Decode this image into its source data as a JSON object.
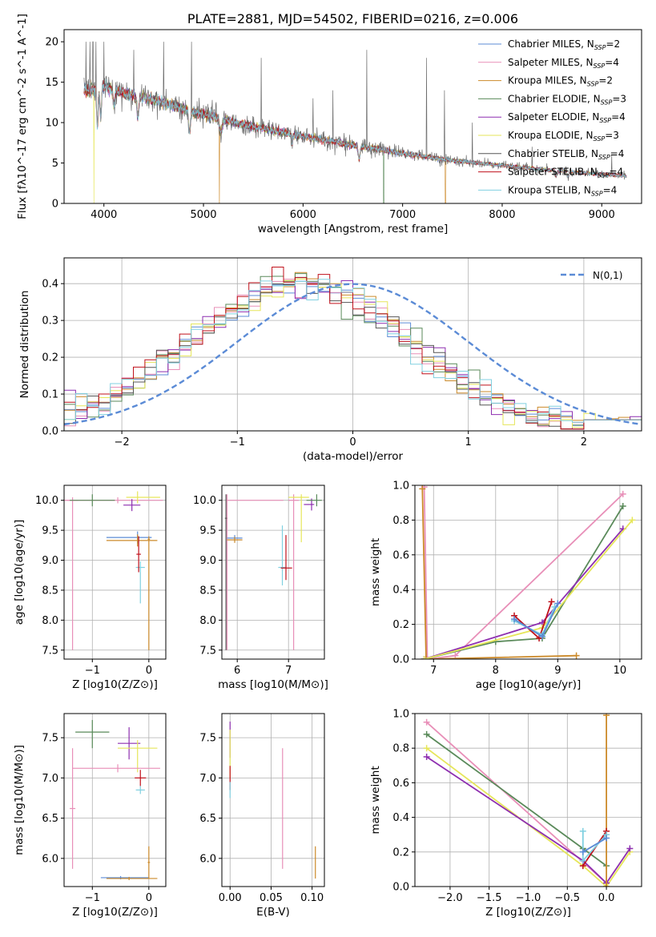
{
  "chart_data": [
    {
      "type": "line",
      "title": "PLATE=2881, MJD=54502, FIBERID=0216, z=0.006",
      "xlabel": "wavelength [Angstrom, rest frame]",
      "ylabel": "Flux [fλ10^-17 erg cm^-2 s^-1 A^-1]",
      "xlim": [
        3600,
        9400
      ],
      "ylim": [
        0,
        21.5
      ],
      "xticks": [
        4000,
        5000,
        6000,
        7000,
        8000,
        9000
      ],
      "yticks": [
        0,
        5,
        10,
        15,
        20
      ],
      "legend_position": "upper-right",
      "series": [
        {
          "name": "Chabrier MILES, N_SSP=2",
          "color": "#5b8bd6"
        },
        {
          "name": "Salpeter MILES, N_SSP=4",
          "color": "#e88fb8"
        },
        {
          "name": "Kroupa MILES, N_SSP=2",
          "color": "#cc8a2a"
        },
        {
          "name": "Chabrier ELODIE, N_SSP=3",
          "color": "#5a8a5a"
        },
        {
          "name": "Salpeter ELODIE, N_SSP=4",
          "color": "#8e2fb0"
        },
        {
          "name": "Kroupa ELODIE, N_SSP=3",
          "color": "#e6e65a"
        },
        {
          "name": "Chabrier STELIB, N_SSP=4",
          "color": "#555555"
        },
        {
          "name": "Salpeter STELIB, N_SSP=4",
          "color": "#c0111b"
        },
        {
          "name": "Kroupa STELIB, N_SSP=4",
          "color": "#80d0e0"
        }
      ],
      "continuum": {
        "x": [
          3800,
          4000,
          4200,
          4500,
          5000,
          5500,
          6000,
          6500,
          7000,
          7500,
          8000,
          8500,
          9000,
          9250
        ],
        "y": [
          13.8,
          14.5,
          13.6,
          12.8,
          11.0,
          9.5,
          8.3,
          7.2,
          6.2,
          5.3,
          4.7,
          4.1,
          3.6,
          3.4
        ]
      }
    },
    {
      "type": "histogram",
      "xlabel": "(data-model)/error",
      "ylabel": "Normed distribution",
      "xlim": [
        -2.5,
        2.5
      ],
      "ylim": [
        0,
        0.47
      ],
      "xticks": [
        -2,
        -1,
        0,
        1,
        2
      ],
      "yticks": [
        0.0,
        0.1,
        0.2,
        0.3,
        0.4
      ],
      "reference_curve": {
        "label": "N(0,1)",
        "mean": 0,
        "sigma": 1,
        "color": "#5b8bd6"
      },
      "bin_width": 0.1,
      "distribution_center": -0.45,
      "distribution_sigma": 0.95,
      "distribution_peak": 0.4,
      "legend_position": "upper-right"
    },
    {
      "type": "scatter",
      "xlabel": "Z [log10(Z/Z⊙)]",
      "ylabel": "age [log10(age/yr)]",
      "xlim": [
        -1.5,
        0.3
      ],
      "ylim": [
        7.35,
        10.25
      ],
      "xticks": [
        -1,
        0
      ],
      "yticks": [
        7.5,
        8.0,
        8.5,
        9.0,
        9.5,
        10.0
      ],
      "points": [
        {
          "x": -1.35,
          "y": 10.0,
          "xerr": [
            0.1,
            0.1
          ],
          "yerr": [
            2.5,
            0.05
          ],
          "color": "#e88fb8"
        },
        {
          "x": -0.55,
          "y": 10.0,
          "xerr": [
            0.95,
            0.8
          ],
          "yerr": [
            0.05,
            0.05
          ],
          "color": "#e88fb8"
        },
        {
          "x": -1.0,
          "y": 10.0,
          "xerr": [
            0.4,
            0.4
          ],
          "yerr": [
            0.1,
            0.1
          ],
          "color": "#5a8a5a"
        },
        {
          "x": -0.2,
          "y": 10.05,
          "xerr": [
            0.2,
            0.4
          ],
          "yerr": [
            0.1,
            0.1
          ],
          "color": "#e6e65a"
        },
        {
          "x": -0.3,
          "y": 9.92,
          "xerr": [
            0.15,
            0.15
          ],
          "yerr": [
            0.1,
            0.1
          ],
          "color": "#8e2fb0"
        },
        {
          "x": -0.2,
          "y": 9.38,
          "xerr": [
            0.55,
            0.25
          ],
          "yerr": [
            0.1,
            0.1
          ],
          "color": "#5b8bd6"
        },
        {
          "x": -0.2,
          "y": 9.33,
          "xerr": [
            0.55,
            0.35
          ],
          "yerr": [
            0.1,
            0.1
          ],
          "color": "#cc8a2a"
        },
        {
          "x": -0.15,
          "y": 8.88,
          "xerr": [
            0.08,
            0.08
          ],
          "yerr": [
            0.6,
            0.1
          ],
          "color": "#80d0e0"
        },
        {
          "x": -0.18,
          "y": 9.1,
          "xerr": [
            0.04,
            0.04
          ],
          "yerr": [
            0.3,
            0.3
          ],
          "color": "#c0111b"
        },
        {
          "x": 0.0,
          "y": 9.35,
          "xerr": [
            0.02,
            0.02
          ],
          "yerr": [
            1.85,
            0.05
          ],
          "color": "#cc8a2a"
        }
      ]
    },
    {
      "type": "scatter",
      "xlabel": "mass [log10(M/M⊙)]",
      "ylabel": "",
      "xlim": [
        5.7,
        7.7
      ],
      "ylim": [
        7.35,
        10.25
      ],
      "xticks": [
        6,
        7
      ],
      "yticks": [
        7.5,
        8.0,
        8.5,
        9.0,
        9.5,
        10.0
      ],
      "points": [
        {
          "x": 5.8,
          "y": 10.0,
          "xerr": [
            0.02,
            1.1
          ],
          "yerr": [
            2.5,
            0.1
          ],
          "color": "#e88fb8"
        },
        {
          "x": 5.78,
          "y": 9.7,
          "xerr": [
            0.02,
            0.02
          ],
          "yerr": [
            2.2,
            0.4
          ],
          "color": "#555555"
        },
        {
          "x": 5.95,
          "y": 9.37,
          "xerr": [
            0.15,
            0.15
          ],
          "yerr": [
            0.05,
            0.05
          ],
          "color": "#5b8bd6"
        },
        {
          "x": 5.95,
          "y": 9.34,
          "xerr": [
            0.15,
            0.15
          ],
          "yerr": [
            0.05,
            0.05
          ],
          "color": "#cc8a2a"
        },
        {
          "x": 7.1,
          "y": 10.0,
          "xerr": [
            0.1,
            0.1
          ],
          "yerr": [
            2.5,
            0.1
          ],
          "color": "#e88fb8"
        },
        {
          "x": 7.25,
          "y": 10.05,
          "xerr": [
            0.25,
            0.15
          ],
          "yerr": [
            0.75,
            0.05
          ],
          "color": "#e6e65a"
        },
        {
          "x": 7.45,
          "y": 9.93,
          "xerr": [
            0.15,
            0.05
          ],
          "yerr": [
            0.1,
            0.1
          ],
          "color": "#8e2fb0"
        },
        {
          "x": 7.55,
          "y": 10.0,
          "xerr": [
            0.2,
            0.1
          ],
          "yerr": [
            0.1,
            0.1
          ],
          "color": "#5a8a5a"
        },
        {
          "x": 6.88,
          "y": 8.88,
          "xerr": [
            0.08,
            0.08
          ],
          "yerr": [
            0.3,
            0.7
          ],
          "color": "#80d0e0"
        },
        {
          "x": 6.95,
          "y": 8.87,
          "xerr": [
            0.1,
            0.12
          ],
          "yerr": [
            0.2,
            0.55
          ],
          "color": "#c0111b"
        }
      ]
    },
    {
      "type": "line",
      "xlabel": "age [log10(age/yr)]",
      "ylabel": "mass weight",
      "xlim": [
        6.7,
        10.35
      ],
      "ylim": [
        0,
        1.0
      ],
      "xticks": [
        7,
        8,
        9,
        10
      ],
      "yticks": [
        0.0,
        0.2,
        0.4,
        0.6,
        0.8,
        1.0
      ],
      "series": [
        {
          "color": "#e88fb8",
          "x": [
            6.85,
            6.9,
            7.35,
            10.05
          ],
          "y": [
            0.99,
            0.0,
            0.02,
            0.95
          ]
        },
        {
          "color": "#cc8a2a",
          "x": [
            6.82,
            6.88,
            9.3
          ],
          "y": [
            0.98,
            0.0,
            0.02
          ]
        },
        {
          "color": "#5a8a5a",
          "x": [
            6.85,
            8.0,
            8.75,
            10.05
          ],
          "y": [
            0.0,
            0.1,
            0.12,
            0.88
          ]
        },
        {
          "color": "#8e2fb0",
          "x": [
            6.85,
            8.75,
            10.05
          ],
          "y": [
            0.0,
            0.21,
            0.75
          ]
        },
        {
          "color": "#e6e65a",
          "x": [
            6.85,
            8.75,
            10.2
          ],
          "y": [
            0.0,
            0.18,
            0.8
          ]
        },
        {
          "color": "#c0111b",
          "x": [
            8.3,
            8.7,
            8.9
          ],
          "y": [
            0.25,
            0.12,
            0.33
          ]
        },
        {
          "color": "#80d0e0",
          "x": [
            8.3,
            8.75,
            8.95
          ],
          "y": [
            0.22,
            0.14,
            0.3
          ]
        },
        {
          "color": "#5b8bd6",
          "x": [
            8.3,
            8.75,
            9.0
          ],
          "y": [
            0.23,
            0.13,
            0.32
          ]
        }
      ]
    },
    {
      "type": "scatter",
      "xlabel": "Z [log10(Z/Z⊙)]",
      "ylabel": "mass [log10(M/M⊙)]",
      "xlim": [
        -1.5,
        0.3
      ],
      "ylim": [
        5.65,
        7.8
      ],
      "xticks": [
        -1,
        0
      ],
      "yticks": [
        6.0,
        6.5,
        7.0,
        7.5
      ],
      "points": [
        {
          "x": -1.0,
          "y": 7.57,
          "xerr": [
            0.3,
            0.3
          ],
          "yerr": [
            0.2,
            0.15
          ],
          "color": "#5a8a5a"
        },
        {
          "x": -0.35,
          "y": 7.43,
          "xerr": [
            0.2,
            0.2
          ],
          "yerr": [
            0.2,
            0.2
          ],
          "color": "#8e2fb0"
        },
        {
          "x": -0.2,
          "y": 7.37,
          "xerr": [
            0.35,
            0.35
          ],
          "yerr": [
            0.3,
            0.1
          ],
          "color": "#e6e65a"
        },
        {
          "x": -0.55,
          "y": 7.12,
          "xerr": [
            0.8,
            0.75
          ],
          "yerr": [
            0.05,
            0.05
          ],
          "color": "#e88fb8"
        },
        {
          "x": -1.35,
          "y": 6.62,
          "xerr": [
            0.05,
            0.05
          ],
          "yerr": [
            0.75,
            0.75
          ],
          "color": "#e88fb8"
        },
        {
          "x": -0.15,
          "y": 7.0,
          "xerr": [
            0.1,
            0.1
          ],
          "yerr": [
            0.1,
            0.1
          ],
          "color": "#c0111b"
        },
        {
          "x": -0.15,
          "y": 6.85,
          "xerr": [
            0.08,
            0.08
          ],
          "yerr": [
            0.05,
            0.05
          ],
          "color": "#80d0e0"
        },
        {
          "x": -0.5,
          "y": 5.76,
          "xerr": [
            0.35,
            0.5
          ],
          "yerr": [
            0.02,
            0.02
          ],
          "color": "#5b8bd6"
        },
        {
          "x": -0.35,
          "y": 5.75,
          "xerr": [
            0.4,
            0.5
          ],
          "yerr": [
            0.02,
            0.02
          ],
          "color": "#cc8a2a"
        },
        {
          "x": 0.0,
          "y": 5.95,
          "xerr": [
            0.02,
            0.02
          ],
          "yerr": [
            0.2,
            0.2
          ],
          "color": "#cc8a2a"
        }
      ]
    },
    {
      "type": "scatter",
      "xlabel": "E(B-V)",
      "ylabel": "",
      "xlim": [
        -0.01,
        0.115
      ],
      "ylim": [
        5.65,
        7.8
      ],
      "xticks": [
        0.0,
        0.05,
        0.1
      ],
      "yticks": [
        6.0,
        6.5,
        7.0,
        7.5
      ],
      "points": [
        {
          "x": 0.0,
          "y": 7.5,
          "xerr": [
            0,
            0
          ],
          "yerr": [
            0.25,
            0.2
          ],
          "color": "#8e2fb0"
        },
        {
          "x": 0.0,
          "y": 7.3,
          "xerr": [
            0,
            0
          ],
          "yerr": [
            0.3,
            0.3
          ],
          "color": "#e6e65a"
        },
        {
          "x": 0.0,
          "y": 7.0,
          "xerr": [
            0,
            0
          ],
          "yerr": [
            0.15,
            0.15
          ],
          "color": "#c0111b"
        },
        {
          "x": 0.0,
          "y": 6.85,
          "xerr": [
            0,
            0
          ],
          "yerr": [
            0.1,
            0.1
          ],
          "color": "#80d0e0"
        },
        {
          "x": 0.064,
          "y": 6.62,
          "xerr": [
            0,
            0
          ],
          "yerr": [
            0.75,
            0.75
          ],
          "color": "#e88fb8"
        },
        {
          "x": 0.104,
          "y": 5.95,
          "xerr": [
            0,
            0
          ],
          "yerr": [
            0.2,
            0.2
          ],
          "color": "#cc8a2a"
        }
      ]
    },
    {
      "type": "line",
      "xlabel": "Z [log10(Z/Z⊙)]",
      "ylabel": "mass weight",
      "xlim": [
        -2.45,
        0.45
      ],
      "ylim": [
        0,
        1.0
      ],
      "xticks": [
        -2.0,
        -1.5,
        -1.0,
        -0.5,
        0.0
      ],
      "yticks": [
        0.0,
        0.2,
        0.4,
        0.6,
        0.8,
        1.0
      ],
      "series": [
        {
          "color": "#e88fb8",
          "x": [
            -2.3,
            0.0
          ],
          "y": [
            0.95,
            0.02
          ]
        },
        {
          "color": "#5a8a5a",
          "x": [
            -2.3,
            -0.3,
            0.0
          ],
          "y": [
            0.88,
            0.22,
            0.12
          ]
        },
        {
          "color": "#e6e65a",
          "x": [
            -2.3,
            -0.3,
            0.0,
            0.3
          ],
          "y": [
            0.8,
            0.12,
            0.0,
            0.2
          ]
        },
        {
          "color": "#8e2fb0",
          "x": [
            -2.3,
            -0.3,
            0.0,
            0.3
          ],
          "y": [
            0.75,
            0.15,
            0.02,
            0.22
          ]
        },
        {
          "color": "#cc8a2a",
          "x": [
            0.0,
            0.0
          ],
          "y": [
            0.0,
            0.99
          ]
        },
        {
          "color": "#c0111b",
          "x": [
            -0.3,
            0.0
          ],
          "y": [
            0.12,
            0.32
          ]
        },
        {
          "color": "#80d0e0",
          "x": [
            -0.3,
            -0.3,
            0.0
          ],
          "y": [
            0.32,
            0.15,
            0.3
          ]
        },
        {
          "color": "#5b8bd6",
          "x": [
            -0.3,
            0.0
          ],
          "y": [
            0.2,
            0.28
          ]
        }
      ]
    }
  ]
}
